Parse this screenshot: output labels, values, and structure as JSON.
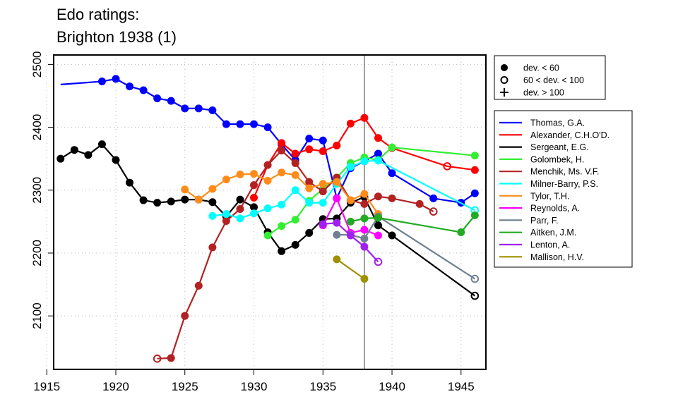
{
  "chart_data": {
    "type": "line",
    "title_lines": [
      "Edo ratings:",
      "Brighton 1938 (1)"
    ],
    "xlabel": "",
    "ylabel": "",
    "xlim": [
      1915.5,
      1946.8
    ],
    "ylim": [
      2015,
      2515
    ],
    "xticks": [
      "1915",
      "1920",
      "1925",
      "1930",
      "1935",
      "1940",
      "1945"
    ],
    "yticks": [
      "2100",
      "2200",
      "2300",
      "2400",
      "2500"
    ],
    "grid": true,
    "reference_line_x": 1938,
    "marker_legend": [
      {
        "symbol": "filled-circle",
        "label": "dev. < 60"
      },
      {
        "symbol": "open-circle",
        "label": "60 < dev. < 100"
      },
      {
        "symbol": "plus",
        "label": "dev. > 100"
      }
    ],
    "series": [
      {
        "name": "Thomas, G.A.",
        "color": "#0000ff",
        "points": [
          [
            1916,
            2468,
            "none"
          ],
          [
            1919,
            2473,
            "filled"
          ],
          [
            1920,
            2477,
            "filled"
          ],
          [
            1921,
            2465,
            "filled"
          ],
          [
            1922,
            2459,
            "filled"
          ],
          [
            1923,
            2446,
            "filled"
          ],
          [
            1924,
            2442,
            "filled"
          ],
          [
            1925,
            2430,
            "filled"
          ],
          [
            1926,
            2430,
            "filled"
          ],
          [
            1927,
            2427,
            "filled"
          ],
          [
            1928,
            2405,
            "filled"
          ],
          [
            1929,
            2405,
            "filled"
          ],
          [
            1930,
            2405,
            "filled"
          ],
          [
            1931,
            2400,
            "filled"
          ],
          [
            1932,
            2373,
            "filled"
          ],
          [
            1933,
            2348,
            "filled"
          ],
          [
            1934,
            2382,
            "filled"
          ],
          [
            1935,
            2379,
            "filled"
          ],
          [
            1936,
            2287,
            "filled"
          ],
          [
            1937,
            2335,
            "filled"
          ],
          [
            1938,
            2346,
            "filled"
          ],
          [
            1939,
            2358,
            "filled"
          ],
          [
            1940,
            2327,
            "filled"
          ],
          [
            1943,
            2287,
            "filled"
          ],
          [
            1945,
            2280,
            "filled"
          ],
          [
            1946,
            2295,
            "filled"
          ]
        ]
      },
      {
        "name": "Alexander, C.H.O'D.",
        "color": "#ff0000",
        "points": [
          [
            1930,
            2288,
            "filled"
          ],
          [
            1931,
            2340,
            "filled"
          ],
          [
            1932,
            2375,
            "filled"
          ],
          [
            1933,
            2358,
            "filled"
          ],
          [
            1934,
            2365,
            "filled"
          ],
          [
            1935,
            2362,
            "filled"
          ],
          [
            1936,
            2371,
            "filled"
          ],
          [
            1937,
            2406,
            "filled"
          ],
          [
            1938,
            2415,
            "filled"
          ],
          [
            1939,
            2383,
            "filled"
          ],
          [
            1940,
            2367,
            "filled"
          ],
          [
            1944,
            2338,
            "open"
          ],
          [
            1946,
            2332,
            "filled"
          ]
        ]
      },
      {
        "name": "Sergeant, E.G.",
        "color": "#000000",
        "points": [
          [
            1916,
            2350,
            "filled"
          ],
          [
            1917,
            2364,
            "filled"
          ],
          [
            1918,
            2356,
            "filled"
          ],
          [
            1919,
            2373,
            "filled"
          ],
          [
            1920,
            2348,
            "filled"
          ],
          [
            1921,
            2312,
            "filled"
          ],
          [
            1922,
            2284,
            "filled"
          ],
          [
            1923,
            2280,
            "filled"
          ],
          [
            1924,
            2282,
            "filled"
          ],
          [
            1925,
            2285,
            "filled"
          ],
          [
            1926,
            2285,
            "filled"
          ],
          [
            1927,
            2281,
            "filled"
          ],
          [
            1928,
            2258,
            "filled"
          ],
          [
            1929,
            2285,
            "filled"
          ],
          [
            1930,
            2273,
            "filled"
          ],
          [
            1931,
            2233,
            "filled"
          ],
          [
            1932,
            2203,
            "filled"
          ],
          [
            1933,
            2213,
            "filled"
          ],
          [
            1934,
            2232,
            "filled"
          ],
          [
            1935,
            2254,
            "filled"
          ],
          [
            1936,
            2255,
            "filled"
          ],
          [
            1937,
            2280,
            "filled"
          ],
          [
            1938,
            2289,
            "filled"
          ],
          [
            1939,
            2244,
            "filled"
          ],
          [
            1940,
            2228,
            "filled"
          ],
          [
            1946,
            2132,
            "open"
          ]
        ]
      },
      {
        "name": "Golombek, H.",
        "color": "#33ee33",
        "points": [
          [
            1931,
            2228,
            "filled"
          ],
          [
            1932,
            2243,
            "filled"
          ],
          [
            1933,
            2253,
            "filled"
          ],
          [
            1934,
            2283,
            "filled"
          ],
          [
            1935,
            2302,
            "filled"
          ],
          [
            1936,
            2320,
            "filled"
          ],
          [
            1937,
            2343,
            "filled"
          ],
          [
            1938,
            2352,
            "filled"
          ],
          [
            1939,
            2348,
            "filled"
          ],
          [
            1940,
            2368,
            "filled"
          ],
          [
            1946,
            2355,
            "filled"
          ]
        ]
      },
      {
        "name": "Menchik, Ms. V.F.",
        "color": "#b22222",
        "points": [
          [
            1923,
            2032,
            "open"
          ],
          [
            1924,
            2033,
            "filled"
          ],
          [
            1925,
            2100,
            "filled"
          ],
          [
            1926,
            2148,
            "filled"
          ],
          [
            1927,
            2209,
            "filled"
          ],
          [
            1928,
            2251,
            "filled"
          ],
          [
            1929,
            2270,
            "filled"
          ],
          [
            1930,
            2308,
            "filled"
          ],
          [
            1931,
            2340,
            "filled"
          ],
          [
            1932,
            2363,
            "filled"
          ],
          [
            1933,
            2343,
            "filled"
          ],
          [
            1934,
            2313,
            "filled"
          ],
          [
            1935,
            2298,
            "filled"
          ],
          [
            1936,
            2320,
            "filled"
          ],
          [
            1937,
            2284,
            "filled"
          ],
          [
            1938,
            2278,
            "filled"
          ],
          [
            1939,
            2290,
            "filled"
          ],
          [
            1940,
            2287,
            "filled"
          ],
          [
            1942,
            2278,
            "filled"
          ],
          [
            1943,
            2266,
            "open"
          ]
        ]
      },
      {
        "name": "Milner-Barry, P.S.",
        "color": "#00ffff",
        "points": [
          [
            1927,
            2259,
            "filled"
          ],
          [
            1928,
            2262,
            "filled"
          ],
          [
            1929,
            2255,
            "filled"
          ],
          [
            1930,
            2263,
            "filled"
          ],
          [
            1931,
            2271,
            "filled"
          ],
          [
            1932,
            2277,
            "filled"
          ],
          [
            1933,
            2300,
            "filled"
          ],
          [
            1934,
            2280,
            "filled"
          ],
          [
            1935,
            2280,
            "filled"
          ],
          [
            1936,
            2310,
            "filled"
          ],
          [
            1937,
            2337,
            "filled"
          ],
          [
            1938,
            2346,
            "filled"
          ],
          [
            1939,
            2347,
            "filled"
          ],
          [
            1946,
            2268,
            "open"
          ]
        ]
      },
      {
        "name": "Tylor, T.H.",
        "color": "#ff8c1a",
        "points": [
          [
            1925,
            2301,
            "filled"
          ],
          [
            1926,
            2285,
            "filled"
          ],
          [
            1927,
            2302,
            "filled"
          ],
          [
            1928,
            2317,
            "filled"
          ],
          [
            1929,
            2325,
            "filled"
          ],
          [
            1930,
            2326,
            "filled"
          ],
          [
            1931,
            2315,
            "filled"
          ],
          [
            1932,
            2328,
            "filled"
          ],
          [
            1933,
            2324,
            "filled"
          ],
          [
            1934,
            2303,
            "filled"
          ],
          [
            1935,
            2310,
            "filled"
          ],
          [
            1936,
            2313,
            "filled"
          ],
          [
            1937,
            2284,
            "filled"
          ],
          [
            1938,
            2294,
            "filled"
          ],
          [
            1939,
            2262,
            "filled"
          ]
        ]
      },
      {
        "name": "Reynolds, A.",
        "color": "#ff00ff",
        "points": [
          [
            1935,
            2244,
            "filled"
          ],
          [
            1936,
            2287,
            "filled"
          ],
          [
            1937,
            2232,
            "filled"
          ],
          [
            1938,
            2237,
            "filled"
          ],
          [
            1939,
            2228,
            "filled"
          ]
        ]
      },
      {
        "name": "Parr, F.",
        "color": "#708090",
        "points": [
          [
            1936,
            2229,
            "filled"
          ],
          [
            1937,
            2229,
            "filled"
          ],
          [
            1938,
            2223,
            "filled"
          ],
          [
            1939,
            2258,
            "filled"
          ],
          [
            1946,
            2159,
            "open"
          ]
        ]
      },
      {
        "name": "Aitken, J.M.",
        "color": "#22aa22",
        "points": [
          [
            1937,
            2250,
            "filled"
          ],
          [
            1938,
            2255,
            "filled"
          ],
          [
            1939,
            2256,
            "filled"
          ],
          [
            1945,
            2233,
            "filled"
          ],
          [
            1946,
            2260,
            "filled"
          ]
        ]
      },
      {
        "name": "Lenton, A.",
        "color": "#a020f0",
        "points": [
          [
            1935,
            2246,
            "filled"
          ],
          [
            1936,
            2248,
            "filled"
          ],
          [
            1937,
            2228,
            "filled"
          ],
          [
            1938,
            2210,
            "filled"
          ],
          [
            1939,
            2186,
            "open"
          ]
        ]
      },
      {
        "name": "Mallison, H.V.",
        "color": "#a09000",
        "points": [
          [
            1936,
            2190,
            "filled"
          ],
          [
            1938,
            2159,
            "filled"
          ]
        ]
      }
    ]
  }
}
